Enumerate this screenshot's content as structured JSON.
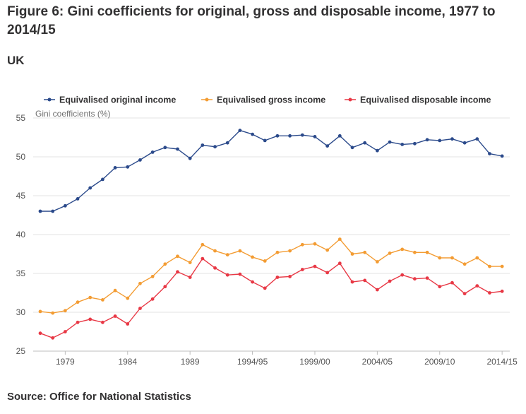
{
  "title": "Figure 6: Gini coefficients for original, gross and disposable income, 1977 to 2014/15",
  "subtitle": "UK",
  "source": "Source: Office for National Statistics",
  "chart_data": {
    "type": "line",
    "ylabel": "Gini coefficients (%)",
    "ylim": [
      25,
      55
    ],
    "yticks": [
      25,
      30,
      35,
      40,
      45,
      50,
      55
    ],
    "grid": "horizontal",
    "legend": "top",
    "x": [
      "1977",
      "1978",
      "1979",
      "1980",
      "1981",
      "1982",
      "1983",
      "1984",
      "1985",
      "1986",
      "1987",
      "1988",
      "1989",
      "1990",
      "1991",
      "1992",
      "1993",
      "1994/95",
      "1995/96",
      "1996/97",
      "1997/98",
      "1998/99",
      "1999/00",
      "2000/01",
      "2001/02",
      "2002/03",
      "2003/04",
      "2004/05",
      "2005/06",
      "2006/07",
      "2007/08",
      "2008/09",
      "2009/10",
      "2010/11",
      "2011/12",
      "2012/13",
      "2013/14",
      "2014/15"
    ],
    "xtick_labels": [
      "1979",
      "1984",
      "1989",
      "1994/95",
      "1999/00",
      "2004/05",
      "2009/10",
      "2014/15"
    ],
    "series": [
      {
        "name": "Equivalised original income",
        "color": "#2b4a8b",
        "values": [
          43.0,
          43.0,
          43.7,
          44.6,
          46.0,
          47.1,
          48.6,
          48.7,
          49.6,
          50.6,
          51.2,
          51.0,
          49.8,
          51.5,
          51.3,
          51.8,
          53.4,
          52.9,
          52.1,
          52.7,
          52.7,
          52.8,
          52.6,
          51.4,
          52.7,
          51.2,
          51.8,
          50.8,
          51.9,
          51.6,
          51.7,
          52.2,
          52.1,
          52.3,
          51.8,
          52.3,
          50.4,
          50.1
        ]
      },
      {
        "name": "Equivalised gross income",
        "color": "#f39c33",
        "values": [
          30.1,
          29.9,
          30.2,
          31.3,
          31.9,
          31.6,
          32.8,
          31.8,
          33.7,
          34.6,
          36.2,
          37.2,
          36.4,
          38.7,
          37.9,
          37.4,
          37.9,
          37.1,
          36.6,
          37.7,
          37.9,
          38.7,
          38.8,
          38.0,
          39.4,
          37.5,
          37.7,
          36.5,
          37.6,
          38.1,
          37.7,
          37.7,
          37.0,
          37.0,
          36.2,
          37.0,
          35.9,
          35.9
        ]
      },
      {
        "name": "Equivalised disposable income",
        "color": "#e83845",
        "values": [
          27.3,
          26.7,
          27.5,
          28.7,
          29.1,
          28.7,
          29.5,
          28.5,
          30.5,
          31.7,
          33.3,
          35.2,
          34.5,
          36.9,
          35.7,
          34.8,
          34.9,
          33.9,
          33.1,
          34.5,
          34.6,
          35.5,
          35.9,
          35.1,
          36.3,
          33.9,
          34.1,
          32.9,
          34.0,
          34.8,
          34.3,
          34.4,
          33.3,
          33.8,
          32.4,
          33.4,
          32.5,
          32.7
        ]
      }
    ]
  }
}
